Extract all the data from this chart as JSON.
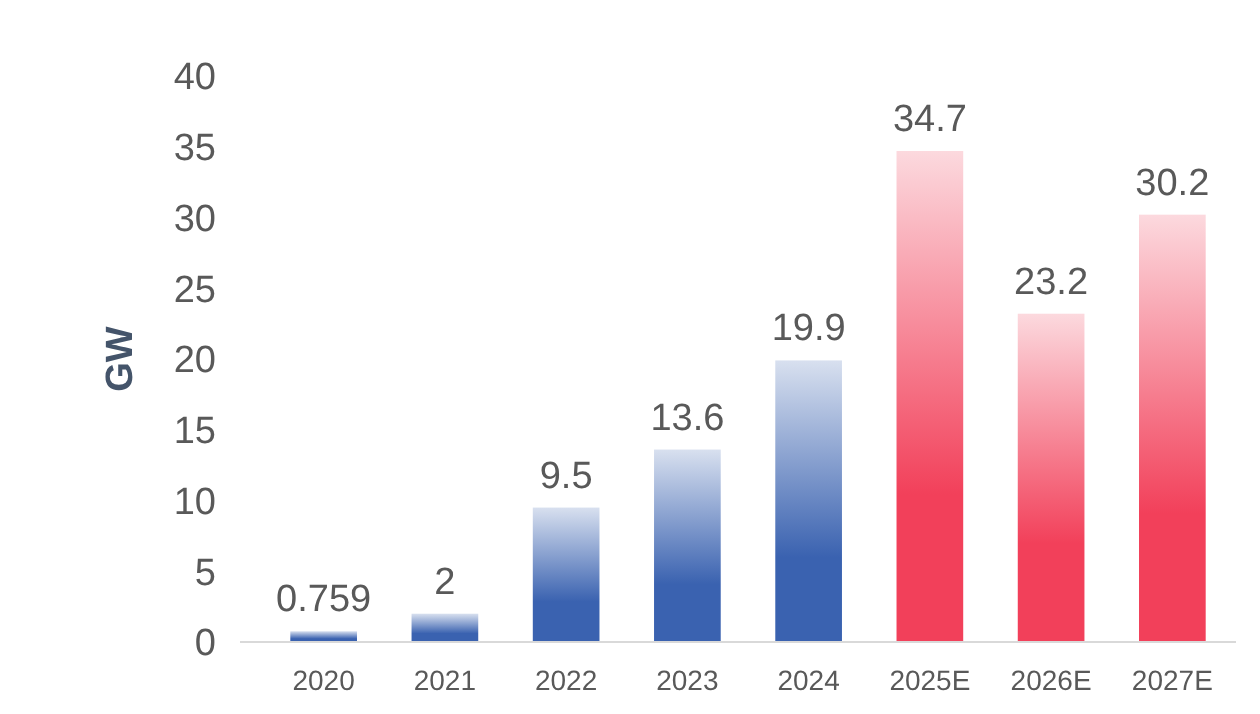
{
  "chart_data": {
    "type": "bar",
    "ylabel": "GW",
    "categories": [
      "2020",
      "2021",
      "2022",
      "2023",
      "2024",
      "2025E",
      "2026E",
      "2027E"
    ],
    "values": [
      0.759,
      2,
      9.5,
      13.6,
      19.9,
      34.7,
      23.2,
      30.2
    ],
    "colors": [
      "#3a62b0",
      "#3a62b0",
      "#3a62b0",
      "#3a62b0",
      "#3a62b0",
      "#f2405a",
      "#f2405a",
      "#f2405a"
    ],
    "ylim": [
      0,
      40
    ],
    "yticks": [
      0,
      5,
      10,
      15,
      20,
      25,
      30,
      35,
      40
    ],
    "grid": false,
    "data_labels": true
  }
}
